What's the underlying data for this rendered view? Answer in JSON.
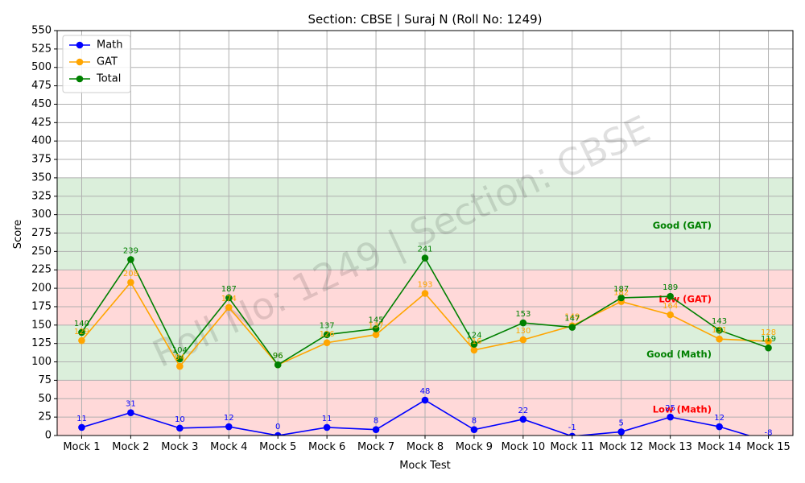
{
  "chart_data": {
    "type": "line",
    "title": "Section: CBSE | Suraj N (Roll No: 1249)",
    "xlabel": "Mock Test",
    "ylabel": "Score",
    "ylim": [
      0,
      550
    ],
    "ytick_step": 25,
    "grid": true,
    "legend_position": "top-left",
    "watermark": "Roll No: 1249 | Section: CBSE",
    "categories": [
      "Mock 1",
      "Mock 2",
      "Mock 3",
      "Mock 4",
      "Mock 5",
      "Mock 6",
      "Mock 7",
      "Mock 8",
      "Mock 9",
      "Mock 10",
      "Mock 11",
      "Mock 12",
      "Mock 13",
      "Mock 14",
      "Mock 15"
    ],
    "series": [
      {
        "name": "Math",
        "color": "#0000ff",
        "values": [
          11,
          31,
          10,
          12,
          0,
          11,
          8,
          48,
          8,
          22,
          -1,
          5,
          25,
          12,
          -8
        ]
      },
      {
        "name": "GAT",
        "color": "#ffa500",
        "values": [
          129,
          208,
          94,
          174,
          96,
          126,
          137,
          193,
          116,
          130,
          149,
          182,
          164,
          131,
          128
        ]
      },
      {
        "name": "Total",
        "color": "#008000",
        "values": [
          140,
          239,
          104,
          187,
          96,
          137,
          145,
          241,
          124,
          153,
          147,
          187,
          189,
          143,
          119
        ]
      }
    ],
    "bands": [
      {
        "from": 0,
        "to": 75,
        "color": "#ffb3b3",
        "label": "Low (Math)",
        "label_color": "#ff0000",
        "label_value": 35
      },
      {
        "from": 75,
        "to": 150,
        "color": "#b8dfb8",
        "label": "Good (Math)",
        "label_color": "#008000",
        "label_value": 110
      },
      {
        "from": 150,
        "to": 225,
        "color": "#ffb3b3",
        "label": "Low (GAT)",
        "label_color": "#ff0000",
        "label_value": 185
      },
      {
        "from": 225,
        "to": 350,
        "color": "#b8dfb8",
        "label": "Good (GAT)",
        "label_color": "#008000",
        "label_value": 285
      }
    ]
  }
}
